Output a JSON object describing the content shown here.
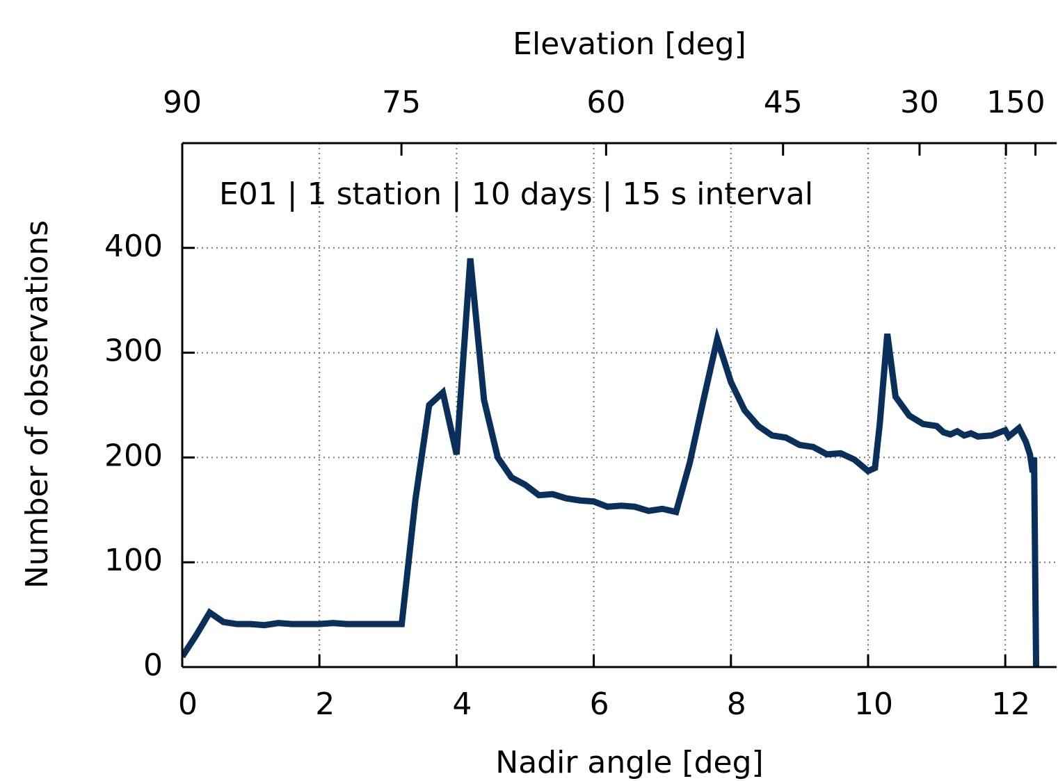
{
  "chart_data": {
    "type": "line",
    "annotation": "E01 | 1 station | 10 days | 15 s interval",
    "x_label": "Nadir angle [deg]",
    "y_label": "Number of observations",
    "x2_label": "Elevation [deg]",
    "xlim": [
      0,
      12.75
    ],
    "ylim": [
      0,
      500
    ],
    "xticks": [
      0,
      2,
      4,
      6,
      8,
      10,
      12
    ],
    "yticks": [
      0,
      100,
      200,
      300,
      400
    ],
    "x2ticks": [
      {
        "value": 0,
        "label": "90"
      },
      {
        "value": 3.196,
        "label": "75"
      },
      {
        "value": 6.18,
        "label": "60"
      },
      {
        "value": 8.76,
        "label": "45"
      },
      {
        "value": 10.75,
        "label": "30"
      },
      {
        "value": 12.01,
        "label": "15"
      },
      {
        "value": 12.44,
        "label": "0"
      }
    ],
    "grid": true,
    "x": [
      0,
      0.2,
      0.4,
      0.6,
      0.8,
      1.0,
      1.2,
      1.4,
      1.6,
      1.8,
      2.0,
      2.2,
      2.4,
      2.6,
      2.8,
      3.0,
      3.2,
      3.4,
      3.6,
      3.8,
      4.0,
      4.2,
      4.4,
      4.6,
      4.8,
      5.0,
      5.2,
      5.4,
      5.6,
      5.8,
      6.0,
      6.2,
      6.4,
      6.6,
      6.8,
      7.0,
      7.2,
      7.4,
      7.6,
      7.8,
      8.0,
      8.2,
      8.4,
      8.6,
      8.8,
      9.0,
      9.2,
      9.4,
      9.6,
      9.8,
      10.0,
      10.1,
      10.17,
      10.28,
      10.4,
      10.6,
      10.8,
      11.0,
      11.1,
      11.2,
      11.3,
      11.4,
      11.5,
      11.6,
      11.8,
      12.0,
      12.05,
      12.2,
      12.3,
      12.36,
      12.4,
      12.42,
      12.45
    ],
    "series": [
      {
        "name": "E01",
        "color": "#0a2f5a",
        "values": [
          10,
          30,
          52,
          43,
          41,
          41,
          40,
          42,
          41,
          41,
          41,
          42,
          41,
          41,
          41,
          41,
          41,
          160,
          250,
          262,
          203,
          390,
          255,
          200,
          181,
          174,
          164,
          165,
          161,
          159,
          158,
          153,
          154,
          153,
          149,
          151,
          148,
          195,
          255,
          313,
          272,
          245,
          230,
          221,
          219,
          212,
          210,
          203,
          204,
          198,
          187,
          190,
          232,
          318,
          258,
          240,
          232,
          230,
          224,
          222,
          225,
          221,
          223,
          220,
          221,
          226,
          220,
          228,
          215,
          203,
          186,
          200,
          0
        ]
      }
    ]
  }
}
